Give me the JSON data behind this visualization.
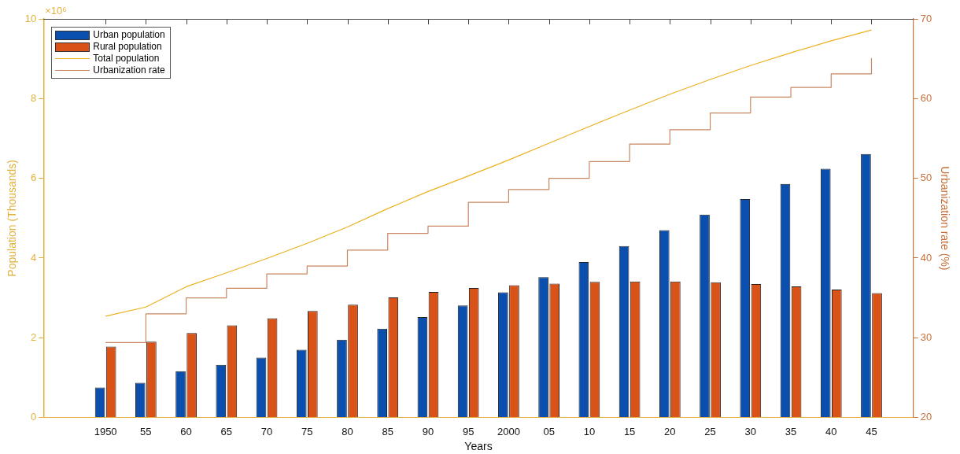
{
  "chart_data": {
    "type": "bar",
    "xlabel": "Years",
    "ylabel": "Population (Thousands)",
    "y2label": "Urbanization rate (%)",
    "categories": [
      "1950",
      "55",
      "60",
      "65",
      "70",
      "75",
      "80",
      "85",
      "90",
      "95",
      "2000",
      "05",
      "10",
      "15",
      "20",
      "25",
      "30",
      "35",
      "40",
      "45"
    ],
    "series": [
      {
        "name": "Urban population",
        "color": "#0a4fae",
        "values": [
          0.75,
          0.87,
          1.16,
          1.32,
          1.5,
          1.7,
          1.95,
          2.23,
          2.52,
          2.81,
          3.14,
          3.52,
          3.9,
          4.3,
          4.7,
          5.09,
          5.48,
          5.86,
          6.24,
          6.61
        ]
      },
      {
        "name": "Rural population",
        "color": "#d95319",
        "values": [
          1.78,
          1.9,
          2.12,
          2.31,
          2.49,
          2.67,
          2.83,
          3.01,
          3.15,
          3.25,
          3.32,
          3.36,
          3.4,
          3.41,
          3.41,
          3.39,
          3.35,
          3.29,
          3.21,
          3.12
        ]
      },
      {
        "name": "Total population",
        "type": "line",
        "color": "#edb120",
        "values": [
          2.54,
          2.77,
          3.28,
          3.63,
          3.99,
          4.37,
          4.78,
          5.24,
          5.67,
          6.06,
          6.46,
          6.88,
          7.3,
          7.71,
          8.11,
          8.48,
          8.83,
          9.15,
          9.45,
          9.72
        ]
      },
      {
        "name": "Urbanization rate",
        "type": "step",
        "axis": "y2",
        "color": "#c9875f",
        "values": [
          29.4,
          33.0,
          35.0,
          36.2,
          38.0,
          39.0,
          41.0,
          43.1,
          44.0,
          47.0,
          48.6,
          50.0,
          52.1,
          54.3,
          56.1,
          58.2,
          60.2,
          61.4,
          63.1,
          65.1
        ]
      }
    ],
    "ylim": [
      0,
      10
    ],
    "yticks": [
      0,
      2,
      4,
      6,
      8,
      10
    ],
    "y2lim": [
      20,
      70
    ],
    "y2ticks": [
      20,
      30,
      40,
      50,
      60,
      70
    ],
    "annotations": [
      "×10⁶"
    ],
    "legend": "top left",
    "marker": "none"
  }
}
